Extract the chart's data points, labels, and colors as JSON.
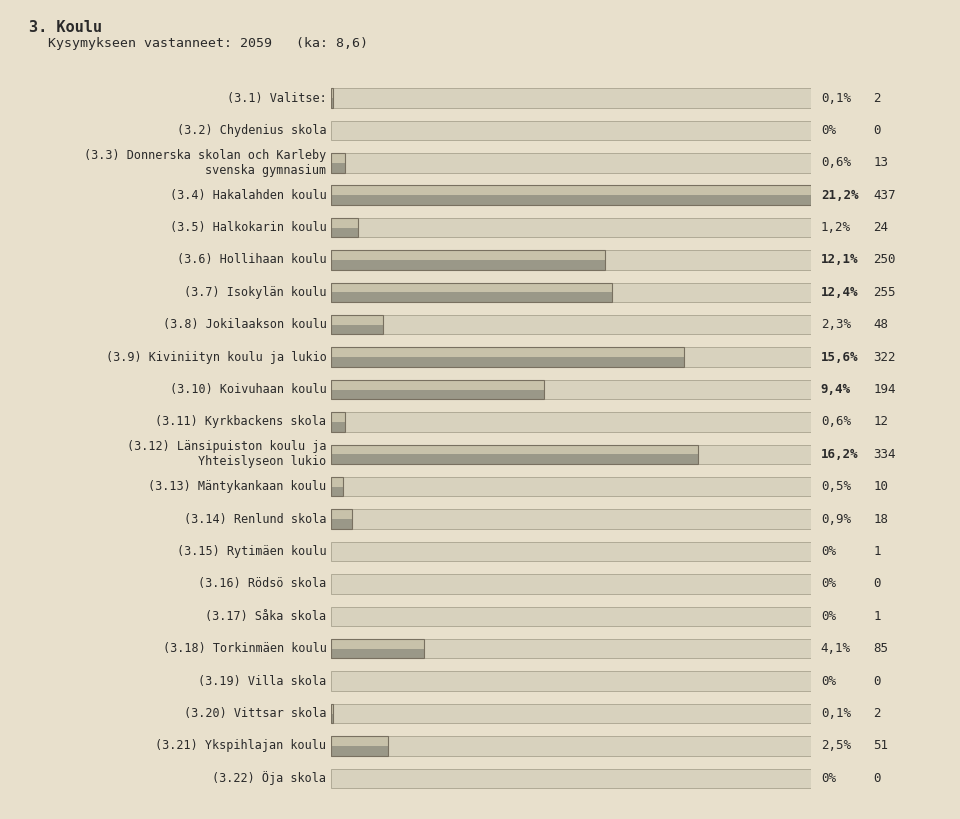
{
  "title": "3. Koulu",
  "subtitle": "Kysymykseen vastanneet: 2059",
  "subtitle_extra": "(ka: 8,6)",
  "bg_color": "#e8e0cc",
  "categories": [
    "(3.1) Valitse:",
    "(3.2) Chydenius skola",
    "(3.3) Donnerska skolan och Karleby\nsvenska gymnasium",
    "(3.4) Hakalahden koulu",
    "(3.5) Halkokarin koulu",
    "(3.6) Hollihaan koulu",
    "(3.7) Isokylän koulu",
    "(3.8) Jokilaakson koulu",
    "(3.9) Kiviniityn koulu ja lukio",
    "(3.10) Koivuhaan koulu",
    "(3.11) Kyrkbackens skola",
    "(3.12) Länsipuiston koulu ja\nYhteislyseon lukio",
    "(3.13) Mäntykankaan koulu",
    "(3.14) Renlund skola",
    "(3.15) Rytimäen koulu",
    "(3.16) Rödsö skola",
    "(3.17) Såka skola",
    "(3.18) Torkinmäen koulu",
    "(3.19) Villa skola",
    "(3.20) Vittsar skola",
    "(3.21) Ykspihlajan koulu",
    "(3.22) Öja skola"
  ],
  "percentages": [
    0.1,
    0.0,
    0.6,
    21.2,
    1.2,
    12.1,
    12.4,
    2.3,
    15.6,
    9.4,
    0.6,
    16.2,
    0.5,
    0.9,
    0.0,
    0.0,
    0.0,
    4.1,
    0.0,
    0.1,
    2.5,
    0.0
  ],
  "counts": [
    2,
    0,
    13,
    437,
    24,
    250,
    255,
    48,
    322,
    194,
    12,
    334,
    10,
    18,
    1,
    0,
    1,
    85,
    0,
    2,
    51,
    0
  ],
  "pct_labels": [
    "0,1%",
    "0%",
    "0,6%",
    "21,2%",
    "1,2%",
    "12,1%",
    "12,4%",
    "2,3%",
    "15,6%",
    "9,4%",
    "0,6%",
    "16,2%",
    "0,5%",
    "0,9%",
    "0%",
    "0%",
    "0%",
    "4,1%",
    "0%",
    "0,1%",
    "2,5%",
    "0%"
  ],
  "max_pct": 21.2,
  "label_fontsize": 8.5,
  "title_fontsize": 11,
  "subtitle_fontsize": 9.5
}
